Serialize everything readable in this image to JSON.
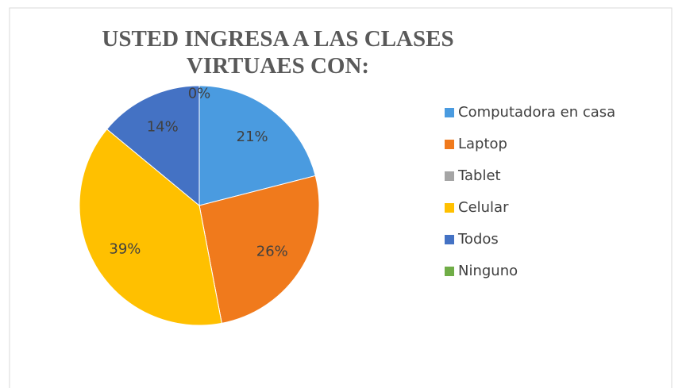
{
  "chart_data": {
    "type": "pie",
    "title": "USTED INGRESA A LAS CLASES VIRTUAES CON:",
    "categories": [
      "Computadora en casa",
      "Laptop",
      "Tablet",
      "Celular",
      "Todos",
      "Ninguno"
    ],
    "values": [
      21,
      26,
      0,
      39,
      14,
      0
    ],
    "value_labels": [
      "21%",
      "26%",
      null,
      "39%",
      "14%",
      "0%"
    ],
    "colors": [
      "#4a9be0",
      "#f07a1c",
      "#a5a5a5",
      "#ffc000",
      "#4472c4",
      "#70ad47"
    ],
    "legend": "right"
  }
}
